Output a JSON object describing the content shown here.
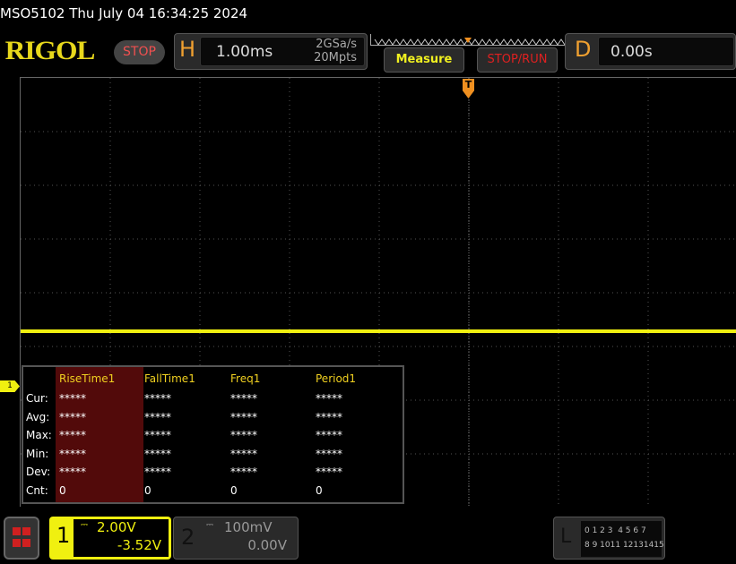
{
  "header": {
    "title": "MSO5102  Thu July 04 16:34:25 2024",
    "logo": "RIGOL",
    "run_state": "STOP",
    "horizontal": {
      "letter": "H",
      "timebase": "1.00ms",
      "sample_rate": "2GSa/s",
      "memory_depth": "20Mpts"
    },
    "measure_button": "Measure",
    "stop_run_button": "STOP/RUN",
    "delay": {
      "letter": "D",
      "value": "0.00s"
    }
  },
  "trigger": {
    "marker": "T"
  },
  "channel_marker": "1",
  "measurements": {
    "headers": [
      "RiseTime1",
      "FallTime1",
      "Freq1",
      "Period1"
    ],
    "rows": [
      {
        "label": "Cur:",
        "values": [
          "*****",
          "*****",
          "*****",
          "*****"
        ]
      },
      {
        "label": "Avg:",
        "values": [
          "*****",
          "*****",
          "*****",
          "*****"
        ]
      },
      {
        "label": "Max:",
        "values": [
          "*****",
          "*****",
          "*****",
          "*****"
        ]
      },
      {
        "label": "Min:",
        "values": [
          "*****",
          "*****",
          "*****",
          "*****"
        ]
      },
      {
        "label": "Dev:",
        "values": [
          "*****",
          "*****",
          "*****",
          "*****"
        ]
      },
      {
        "label": "Cnt:",
        "values": [
          "0",
          "0",
          "0",
          "0"
        ]
      }
    ]
  },
  "footer": {
    "ch1": {
      "num": "1",
      "coupling_icon": "dc-coupling-icon",
      "scale": "2.00V",
      "offset": "-3.52V"
    },
    "ch2": {
      "num": "2",
      "coupling_icon": "dc-coupling-icon",
      "scale": "100mV",
      "offset": "0.00V"
    },
    "logic": {
      "letter": "L",
      "row1": "0 1 2 3  4 5 6 7",
      "row2": "8 9 1011 12131415"
    }
  },
  "colors": {
    "ch1": "#f0f010",
    "accent": "#f0a030",
    "stop": "#e02020"
  }
}
